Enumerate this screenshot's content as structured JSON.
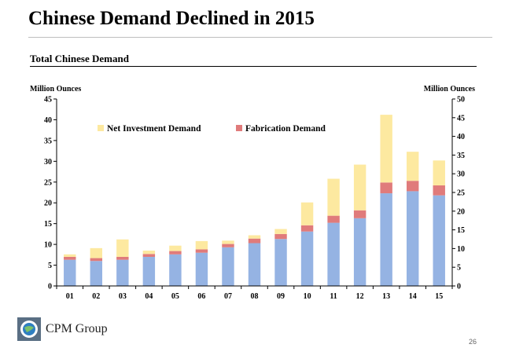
{
  "slide": {
    "title": "Chinese Demand Declined in 2015",
    "page_number": "26",
    "logo_text": "CPM Group"
  },
  "chart_data": {
    "type": "bar",
    "stacked": true,
    "title": "Total Chinese Demand",
    "ylabel_left": "Million Ounces",
    "ylabel_right": "Million Ounces",
    "ylim_left": [
      0,
      45
    ],
    "ylim_right": [
      0,
      50
    ],
    "yticks_left": [
      0,
      5,
      10,
      15,
      20,
      25,
      30,
      35,
      40,
      45
    ],
    "yticks_right": [
      0,
      5,
      10,
      15,
      20,
      25,
      30,
      35,
      40,
      45,
      50
    ],
    "categories": [
      "01",
      "02",
      "03",
      "04",
      "05",
      "06",
      "07",
      "08",
      "09",
      "10",
      "11",
      "12",
      "13",
      "14",
      "15"
    ],
    "grid": false,
    "legend_position": "top-left",
    "series": [
      {
        "name": "",
        "color": "#95b3e3",
        "values": [
          6.3,
          6.0,
          6.3,
          7.0,
          7.6,
          8.0,
          9.3,
          10.3,
          11.3,
          13.1,
          15.2,
          16.3,
          22.3,
          22.8,
          21.8
        ]
      },
      {
        "name": "Fabrication Demand",
        "color": "#e07b7b",
        "values": [
          0.7,
          0.7,
          0.7,
          0.7,
          0.8,
          0.8,
          0.8,
          1.1,
          1.2,
          1.5,
          1.7,
          1.9,
          2.6,
          2.5,
          2.4
        ]
      },
      {
        "name": "Net Investment Demand",
        "color": "#fde9a0",
        "values": [
          0.6,
          2.4,
          4.2,
          0.8,
          1.3,
          2.0,
          0.8,
          0.8,
          1.2,
          5.5,
          8.9,
          11.0,
          16.3,
          7.0,
          6.0
        ]
      }
    ]
  }
}
